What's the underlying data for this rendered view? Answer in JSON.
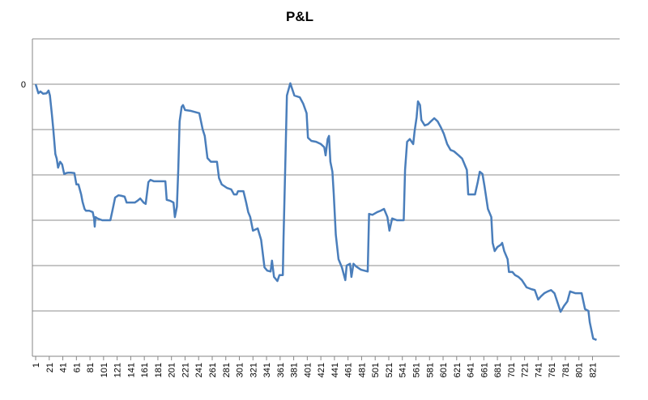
{
  "chart_data": {
    "type": "line",
    "title": "P&L",
    "x": [
      1,
      5,
      8,
      12,
      17,
      20,
      22,
      25,
      27,
      30,
      32,
      34,
      37,
      40,
      43,
      46,
      49,
      53,
      58,
      61,
      64,
      68,
      70,
      73,
      75,
      80,
      85,
      87,
      88,
      89,
      92,
      99,
      111,
      114,
      118,
      123,
      127,
      132,
      135,
      139,
      147,
      151,
      155,
      160,
      163,
      167,
      170,
      175,
      192,
      194,
      199,
      204,
      206,
      209,
      211,
      213,
      216,
      218,
      221,
      230,
      242,
      247,
      250,
      254,
      259,
      268,
      271,
      275,
      283,
      289,
      293,
      297,
      299,
      307,
      311,
      314,
      317,
      321,
      328,
      333,
      338,
      342,
      347,
      349,
      352,
      357,
      360,
      365,
      366,
      369,
      371,
      373,
      376,
      378,
      382,
      390,
      395,
      400,
      402,
      407,
      414,
      421,
      426,
      428,
      431,
      433,
      435,
      438,
      440,
      443,
      447,
      452,
      457,
      459,
      464,
      466,
      469,
      473,
      480,
      485,
      490,
      492,
      497,
      504,
      509,
      514,
      519,
      522,
      526,
      533,
      543,
      545,
      548,
      552,
      557,
      559,
      562,
      564,
      567,
      569,
      574,
      579,
      583,
      588,
      593,
      598,
      602,
      607,
      612,
      617,
      624,
      629,
      631,
      636,
      638,
      643,
      648,
      652,
      655,
      659,
      662,
      667,
      672,
      674,
      677,
      681,
      686,
      688,
      691,
      696,
      698,
      703,
      707,
      712,
      717,
      724,
      731,
      736,
      741,
      745,
      750,
      755,
      760,
      765,
      769,
      774,
      779,
      784,
      788,
      796,
      805,
      810,
      815,
      817,
      822,
      827
    ],
    "series": [
      {
        "name": "P&L",
        "color": "#4a7ebb",
        "values": [
          0,
          -0.2,
          -0.16,
          -0.21,
          -0.2,
          -0.14,
          -0.25,
          -0.68,
          -1,
          -1.54,
          -1.64,
          -1.84,
          -1.71,
          -1.77,
          -1.98,
          -1.96,
          -1.95,
          -1.95,
          -1.96,
          -2.21,
          -2.21,
          -2.43,
          -2.59,
          -2.75,
          -2.79,
          -2.79,
          -2.82,
          -2.96,
          -3.14,
          -2.93,
          -2.96,
          -3,
          -3,
          -2.79,
          -2.5,
          -2.45,
          -2.46,
          -2.48,
          -2.61,
          -2.61,
          -2.61,
          -2.57,
          -2.52,
          -2.61,
          -2.64,
          -2.16,
          -2.11,
          -2.14,
          -2.14,
          -2.55,
          -2.57,
          -2.61,
          -2.93,
          -2.7,
          -1.89,
          -0.82,
          -0.5,
          -0.46,
          -0.57,
          -0.59,
          -0.64,
          -1,
          -1.14,
          -1.63,
          -1.71,
          -1.71,
          -2.07,
          -2.21,
          -2.29,
          -2.32,
          -2.43,
          -2.43,
          -2.36,
          -2.36,
          -2.61,
          -2.82,
          -2.93,
          -3.23,
          -3.18,
          -3.43,
          -4.04,
          -4.11,
          -4.13,
          -3.89,
          -4.25,
          -4.34,
          -4.21,
          -4.21,
          -3.41,
          -1.54,
          -0.25,
          -0.14,
          0.02,
          -0.07,
          -0.25,
          -0.29,
          -0.43,
          -0.64,
          -1.18,
          -1.25,
          -1.27,
          -1.32,
          -1.39,
          -1.57,
          -1.21,
          -1.14,
          -1.71,
          -1.93,
          -2.43,
          -3.32,
          -3.86,
          -4.04,
          -4.32,
          -4,
          -3.96,
          -4.25,
          -3.96,
          -4.02,
          -4.09,
          -4.11,
          -4.13,
          -2.86,
          -2.88,
          -2.82,
          -2.79,
          -2.75,
          -2.93,
          -3.23,
          -2.96,
          -3,
          -3,
          -1.89,
          -1.27,
          -1.21,
          -1.32,
          -1.04,
          -0.73,
          -0.38,
          -0.46,
          -0.79,
          -0.91,
          -0.88,
          -0.82,
          -0.75,
          -0.82,
          -0.96,
          -1.09,
          -1.32,
          -1.45,
          -1.48,
          -1.57,
          -1.64,
          -1.71,
          -1.89,
          -2.43,
          -2.43,
          -2.43,
          -2.16,
          -1.93,
          -1.98,
          -2.25,
          -2.75,
          -2.93,
          -3.5,
          -3.68,
          -3.59,
          -3.54,
          -3.5,
          -3.68,
          -3.86,
          -4.14,
          -4.14,
          -4.21,
          -4.25,
          -4.32,
          -4.48,
          -4.52,
          -4.54,
          -4.75,
          -4.68,
          -4.61,
          -4.57,
          -4.54,
          -4.61,
          -4.79,
          -5.02,
          -4.89,
          -4.79,
          -4.57,
          -4.61,
          -4.61,
          -4.96,
          -5,
          -5.25,
          -5.61,
          -5.64
        ]
      }
    ],
    "xlim": [
      -3.8,
      861
    ],
    "xticks": [
      1,
      21,
      41,
      61,
      81,
      101,
      121,
      141,
      161,
      181,
      201,
      221,
      241,
      261,
      281,
      301,
      321,
      341,
      361,
      381,
      401,
      421,
      441,
      461,
      481,
      501,
      521,
      541,
      561,
      581,
      601,
      621,
      641,
      661,
      681,
      701,
      721,
      741,
      761,
      781,
      801,
      821
    ],
    "ylim": [
      -6,
      1
    ],
    "yticks": [
      0
    ],
    "grid": true,
    "grid_lines": [
      1,
      -1,
      -2,
      -3,
      -4,
      -5
    ]
  }
}
